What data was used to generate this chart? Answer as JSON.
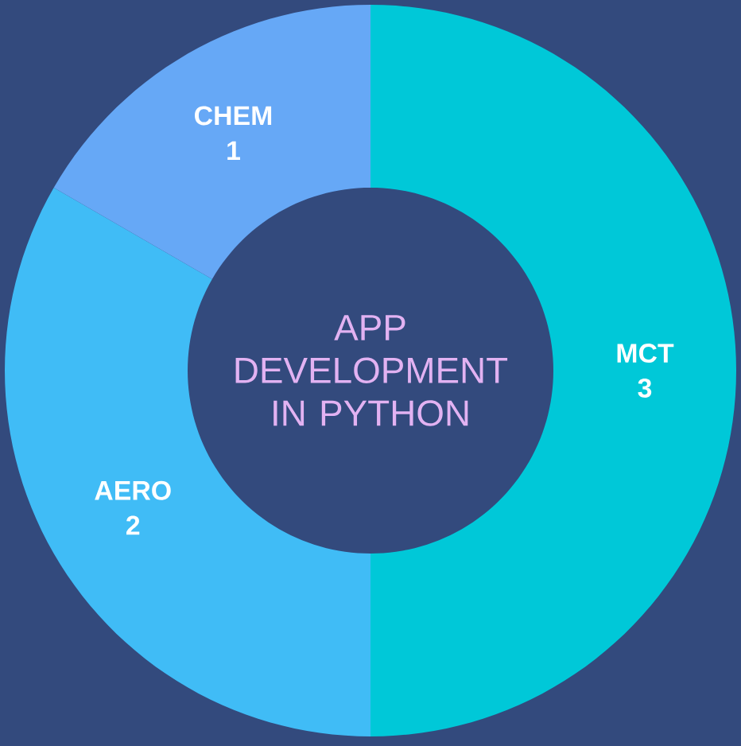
{
  "chart_data": {
    "type": "donut",
    "title": "APP DEVELOPMENT IN PYTHON",
    "categories": [
      "MCT",
      "AERO",
      "CHEM"
    ],
    "values": [
      3,
      2,
      1
    ],
    "colors": [
      "#00c8d8",
      "#40bcf6",
      "#66a8f6"
    ],
    "data_labels": true
  }
}
